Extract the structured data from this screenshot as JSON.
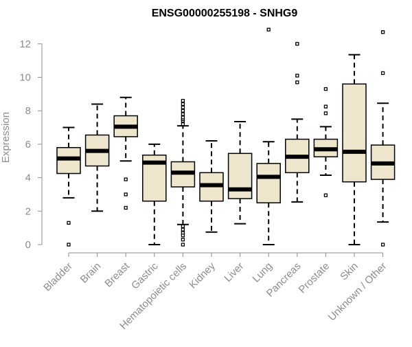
{
  "chart_data": {
    "type": "box",
    "title": "ENSG00000255198 - SNHG9",
    "xlabel": "",
    "ylabel": "Expression",
    "ylim": [
      0,
      12.5
    ],
    "yticks": [
      0,
      2,
      4,
      6,
      8,
      10,
      12
    ],
    "grid": false,
    "legend": "none",
    "categories": [
      "Bladder",
      "Brain",
      "Breast",
      "Gastric",
      "Hematopoietic cells",
      "Kidney",
      "Liver",
      "Lung",
      "Pancreas",
      "Prostate",
      "Skin",
      "Unknown / Other"
    ],
    "boxes": [
      {
        "whisker_low": 2.8,
        "q1": 4.25,
        "median": 5.15,
        "q3": 5.8,
        "whisker_high": 7.0,
        "outliers": [
          1.3,
          0.0
        ]
      },
      {
        "whisker_low": 2.0,
        "q1": 4.7,
        "median": 5.6,
        "q3": 6.55,
        "whisker_high": 8.4,
        "outliers": []
      },
      {
        "whisker_low": 5.0,
        "q1": 6.45,
        "median": 7.05,
        "q3": 7.7,
        "whisker_high": 8.8,
        "outliers": [
          3.9,
          3.0,
          2.2
        ]
      },
      {
        "whisker_low": 0.0,
        "q1": 2.6,
        "median": 4.9,
        "q3": 5.35,
        "whisker_high": 6.0,
        "outliers": []
      },
      {
        "whisker_low": 1.2,
        "q1": 3.45,
        "median": 4.3,
        "q3": 4.95,
        "whisker_high": 7.1,
        "outliers": [
          7.2,
          7.4,
          7.5,
          7.6,
          7.8,
          8.0,
          8.2,
          8.4,
          8.6,
          1.1,
          0.9,
          0.7,
          0.55,
          0.3,
          0.0
        ]
      },
      {
        "whisker_low": 0.75,
        "q1": 2.6,
        "median": 3.55,
        "q3": 4.3,
        "whisker_high": 6.2,
        "outliers": []
      },
      {
        "whisker_low": 1.25,
        "q1": 2.75,
        "median": 3.3,
        "q3": 5.45,
        "whisker_high": 7.35,
        "outliers": []
      },
      {
        "whisker_low": 0.0,
        "q1": 2.5,
        "median": 4.05,
        "q3": 4.85,
        "whisker_high": 6.15,
        "outliers": [
          12.85
        ]
      },
      {
        "whisker_low": 2.55,
        "q1": 4.3,
        "median": 5.25,
        "q3": 6.3,
        "whisker_high": 7.5,
        "outliers": [
          12.0,
          10.1,
          9.7
        ]
      },
      {
        "whisker_low": 4.15,
        "q1": 5.25,
        "median": 5.7,
        "q3": 6.3,
        "whisker_high": 7.05,
        "outliers": [
          9.3,
          8.25,
          7.85,
          2.95
        ]
      },
      {
        "whisker_low": 0.0,
        "q1": 3.75,
        "median": 5.55,
        "q3": 9.6,
        "whisker_high": 11.35,
        "outliers": []
      },
      {
        "whisker_low": 1.35,
        "q1": 3.9,
        "median": 4.85,
        "q3": 5.95,
        "whisker_high": 8.45,
        "outliers": [
          12.7,
          10.25,
          0.0
        ]
      }
    ],
    "colors": {
      "box_fill": "#ede6cc",
      "box_stroke": "#000000",
      "median": "#000000",
      "axis": "#8c8c8c",
      "tick_text": "#8c8c8c",
      "title": "#000000"
    }
  }
}
